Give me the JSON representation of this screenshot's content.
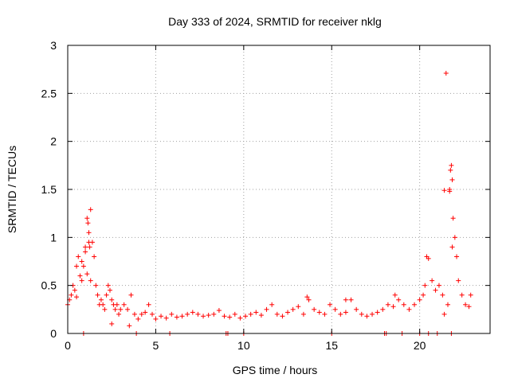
{
  "chart_data": {
    "type": "scatter",
    "title": "Day 333 of 2024, SRMTID for receiver nklg",
    "xlabel": "GPS time / hours",
    "ylabel": "SRMTID / TECUs",
    "xlim": [
      0,
      24
    ],
    "ylim": [
      0,
      3
    ],
    "xticks": [
      0,
      5,
      10,
      15,
      20
    ],
    "xtick_labels": [
      "0",
      "5",
      "10",
      "15",
      "20"
    ],
    "yticks": [
      0,
      0.5,
      1,
      1.5,
      2,
      2.5,
      3
    ],
    "ytick_labels": [
      "0",
      "0.5",
      "1",
      "1.5",
      "2",
      "2.5",
      "3"
    ],
    "grid": true,
    "marker": "+",
    "color": "#ff0000",
    "series": [
      {
        "name": "SRMTID",
        "x": [
          0.0,
          0.1,
          0.2,
          0.3,
          0.4,
          0.5,
          0.6,
          0.7,
          0.8,
          0.9,
          1.0,
          1.1,
          1.15,
          1.2,
          1.25,
          1.3,
          1.4,
          1.5,
          1.6,
          1.7,
          1.8,
          1.9,
          2.0,
          2.1,
          2.2,
          2.3,
          2.4,
          2.5,
          2.6,
          2.7,
          2.8,
          2.9,
          3.0,
          3.2,
          3.4,
          3.6,
          3.8,
          4.0,
          4.2,
          4.4,
          4.6,
          4.8,
          5.0,
          5.3,
          5.6,
          5.9,
          6.2,
          6.5,
          6.8,
          7.1,
          7.4,
          7.7,
          8.0,
          8.3,
          8.6,
          8.9,
          9.2,
          9.5,
          9.8,
          10.1,
          10.4,
          10.7,
          11.0,
          11.3,
          11.6,
          11.9,
          12.2,
          12.5,
          12.8,
          13.1,
          13.4,
          13.7,
          14.0,
          14.3,
          14.6,
          14.9,
          15.2,
          15.5,
          15.8,
          16.1,
          16.4,
          16.7,
          17.0,
          17.3,
          17.6,
          17.9,
          18.2,
          18.5,
          18.8,
          19.1,
          19.4,
          19.7,
          20.0,
          20.2,
          20.3,
          20.4,
          20.5,
          20.7,
          20.9,
          21.1,
          21.3,
          21.4,
          21.5,
          21.6,
          21.7,
          21.75,
          21.8,
          21.85,
          21.9,
          22.0,
          22.1,
          22.2,
          22.4,
          22.6,
          22.8,
          22.9,
          0.9,
          3.9,
          5.8,
          9.0,
          9.1,
          10.0,
          15.0,
          18.0,
          18.1,
          19.0,
          20.0,
          20.5,
          21.0,
          21.8,
          0.5,
          0.8,
          1.0,
          1.1,
          1.2,
          1.3,
          2.5,
          3.5,
          13.6,
          15.8,
          18.6,
          21.4,
          21.7,
          21.85
        ],
        "y": [
          0.3,
          0.35,
          0.4,
          0.5,
          0.45,
          0.7,
          0.8,
          0.6,
          0.55,
          0.7,
          0.9,
          1.2,
          1.15,
          1.05,
          0.9,
          1.29,
          0.95,
          0.8,
          0.5,
          0.4,
          0.3,
          0.35,
          0.3,
          0.25,
          0.4,
          0.5,
          0.45,
          0.35,
          0.3,
          0.25,
          0.3,
          0.2,
          0.25,
          0.3,
          0.25,
          0.4,
          0.2,
          0.15,
          0.2,
          0.22,
          0.3,
          0.2,
          0.15,
          0.18,
          0.16,
          0.2,
          0.17,
          0.18,
          0.2,
          0.22,
          0.2,
          0.18,
          0.19,
          0.2,
          0.24,
          0.18,
          0.17,
          0.2,
          0.16,
          0.18,
          0.2,
          0.22,
          0.19,
          0.25,
          0.3,
          0.2,
          0.18,
          0.22,
          0.25,
          0.28,
          0.2,
          0.35,
          0.25,
          0.22,
          0.2,
          0.3,
          0.25,
          0.2,
          0.22,
          0.35,
          0.25,
          0.2,
          0.18,
          0.2,
          0.22,
          0.25,
          0.3,
          0.28,
          0.35,
          0.3,
          0.25,
          0.3,
          0.35,
          0.4,
          0.5,
          0.8,
          0.78,
          0.55,
          0.45,
          0.5,
          0.4,
          1.49,
          2.71,
          0.3,
          1.5,
          1.7,
          1.75,
          1.6,
          1.2,
          1.0,
          0.8,
          0.55,
          0.4,
          0.3,
          0.28,
          0.4,
          0.0,
          0.0,
          0.0,
          0.0,
          0.0,
          0.0,
          0.0,
          0.0,
          0.0,
          0.0,
          0.0,
          0.0,
          0.0,
          0.0,
          0.38,
          0.75,
          0.85,
          0.62,
          0.95,
          0.55,
          0.1,
          0.08,
          0.38,
          0.35,
          0.4,
          0.2,
          1.48,
          0.9
        ]
      }
    ]
  }
}
